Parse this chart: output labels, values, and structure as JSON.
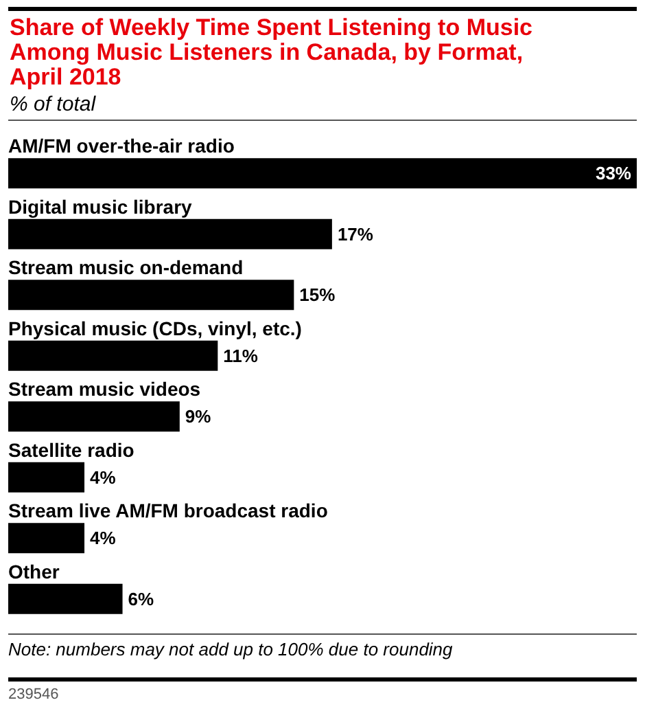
{
  "chart_data": {
    "type": "bar",
    "orientation": "horizontal",
    "title": "Share of Weekly Time Spent Listening to Music Among Music Listeners in Canada, by Format, April 2018",
    "subtitle": "% of total",
    "categories": [
      "AM/FM over-the-air radio",
      "Digital music library",
      "Stream music on-demand",
      "Physical music (CDs, vinyl, etc.)",
      "Stream music videos",
      "Satellite radio",
      "Stream live AM/FM broadcast radio",
      "Other"
    ],
    "values": [
      33,
      17,
      15,
      11,
      9,
      4,
      4,
      6
    ],
    "value_labels": [
      "33%",
      "17%",
      "15%",
      "11%",
      "9%",
      "4%",
      "4%",
      "6%"
    ],
    "color": "#000000",
    "annotations": [
      "Note: numbers may not add up to 100% due to rounding",
      "239546"
    ]
  }
}
